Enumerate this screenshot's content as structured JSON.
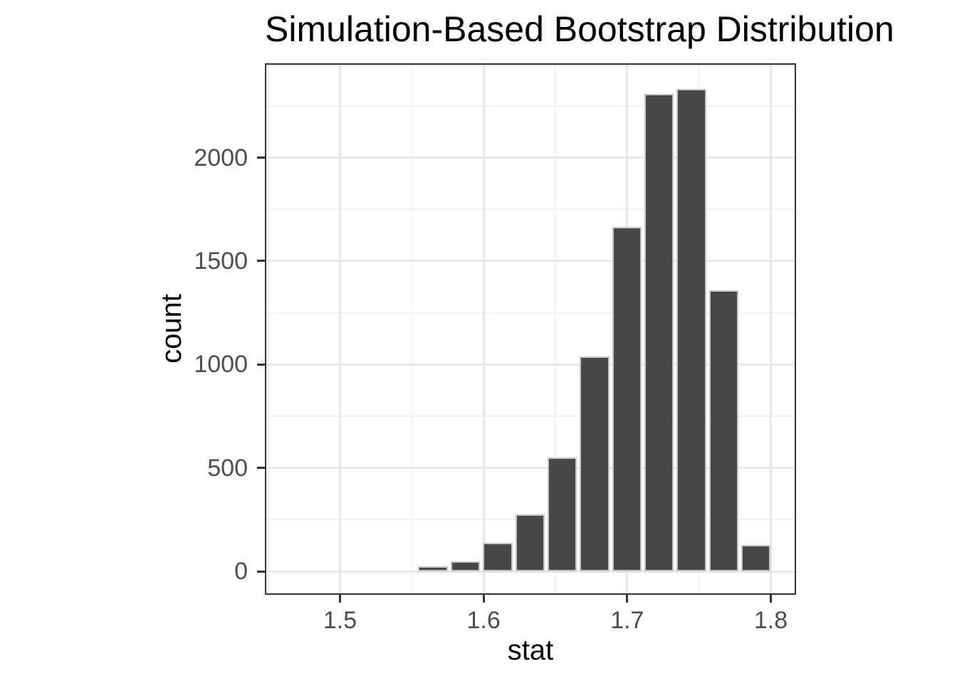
{
  "chart_data": {
    "type": "bar",
    "subtype": "histogram",
    "title": "Simulation-Based Bootstrap Distribution",
    "xlabel": "stat",
    "ylabel": "count",
    "bin_centers": [
      1.5648,
      1.5873,
      1.6098,
      1.6323,
      1.6548,
      1.6772,
      1.6997,
      1.7222,
      1.7447,
      1.7672,
      1.7897
    ],
    "counts": [
      25,
      48,
      137,
      275,
      552,
      1040,
      1664,
      2308,
      2332,
      1358,
      129
    ],
    "binwidth": 0.0225,
    "x_ticks": [
      1.5,
      1.6,
      1.7,
      1.8
    ],
    "x_tick_labels": [
      "1.5",
      "1.6",
      "1.7",
      "1.8"
    ],
    "x_minor_ticks": [
      1.45,
      1.55,
      1.65,
      1.75
    ],
    "y_ticks": [
      0,
      500,
      1000,
      1500,
      2000
    ],
    "y_tick_labels": [
      "0",
      "500",
      "1000",
      "1500",
      "2000"
    ],
    "y_minor_ticks": [
      250,
      750,
      1250,
      1750,
      2250
    ],
    "xlim": [
      1.4477,
      1.8176
    ],
    "ylim": [
      -113,
      2456
    ],
    "grid": "major and minor, on white panel",
    "legend": "none"
  },
  "style": {
    "bar_fill": "#474747",
    "bar_stroke": "#c6c6c6",
    "grid_major_color": "#e7e7e7",
    "grid_minor_color": "#f1f1f1",
    "panel_border_color": "#333333",
    "tick_mark_color": "#333333",
    "tick_label_color": "#4d4d4d",
    "axis_title_color": "#000000",
    "title_color": "#000000",
    "background": "#ffffff"
  }
}
